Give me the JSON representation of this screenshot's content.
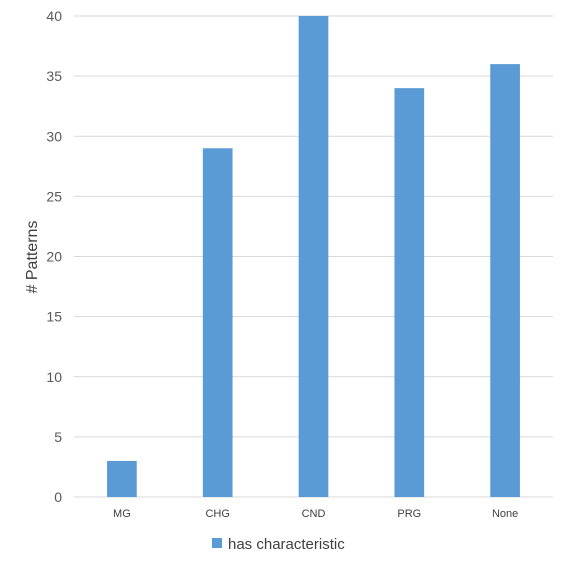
{
  "chart_data": {
    "type": "bar",
    "categories": [
      "MG",
      "CHG",
      "CND",
      "PRG",
      "None"
    ],
    "series": [
      {
        "name": "has characteristic",
        "values": [
          3,
          29,
          40,
          34,
          36
        ]
      }
    ],
    "ylabel": "# Patterns",
    "xlabel": "",
    "ylim": [
      0,
      40
    ],
    "yticks": [
      0,
      5,
      10,
      15,
      20,
      25,
      30,
      35,
      40
    ],
    "grid": true,
    "legend": "bottom",
    "colors": {
      "bar": "#5b9bd5",
      "grid": "#d9d9d9"
    }
  }
}
